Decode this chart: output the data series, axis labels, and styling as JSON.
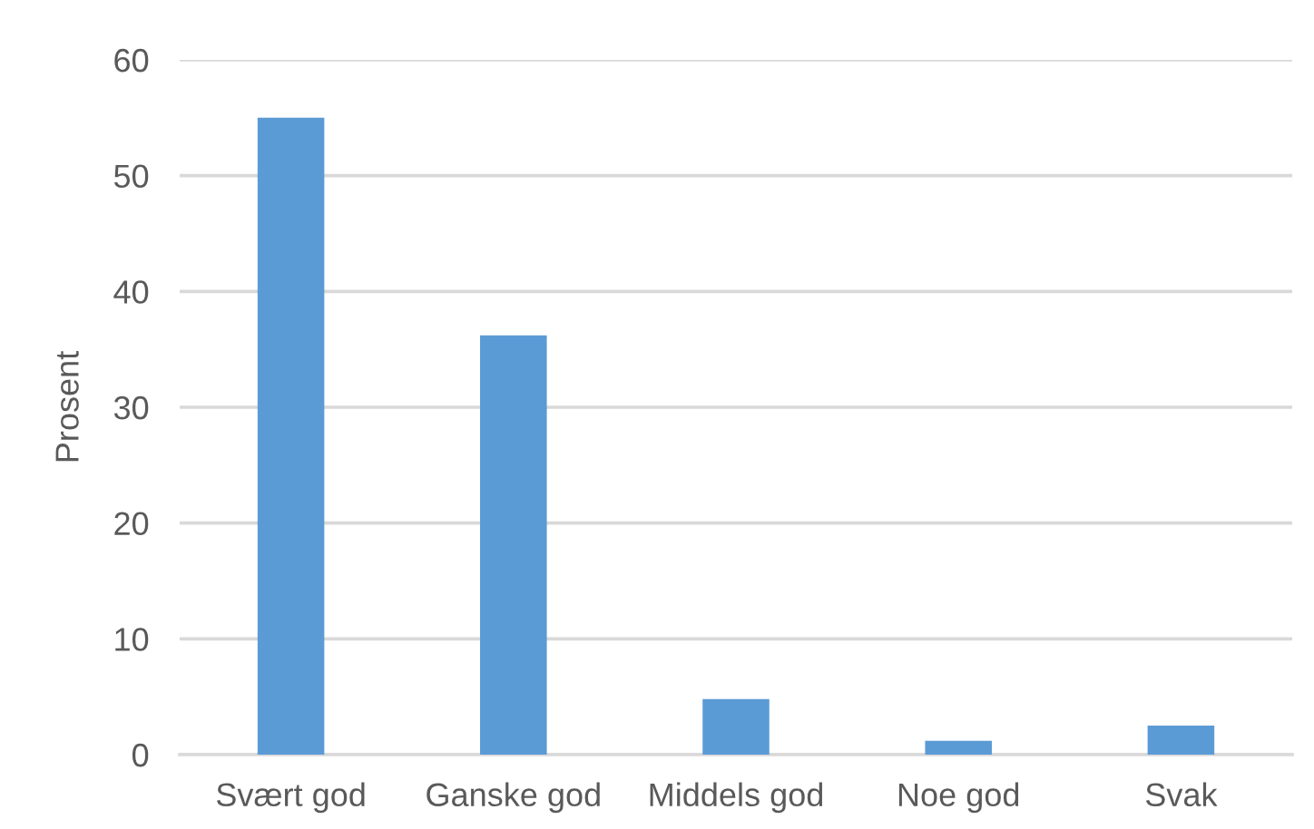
{
  "chart_data": {
    "type": "bar",
    "ylabel": "Prosent",
    "categories": [
      "Svært god",
      "Ganske god",
      "Middels god",
      "Noe god",
      "Svak"
    ],
    "values": [
      55,
      36.2,
      4.8,
      1.2,
      2.5
    ],
    "color": "#5b9bd5",
    "ylim": [
      0,
      60
    ],
    "yticks": [
      0,
      10,
      20,
      30,
      40,
      50,
      60
    ],
    "grid": "y",
    "legend": false
  }
}
